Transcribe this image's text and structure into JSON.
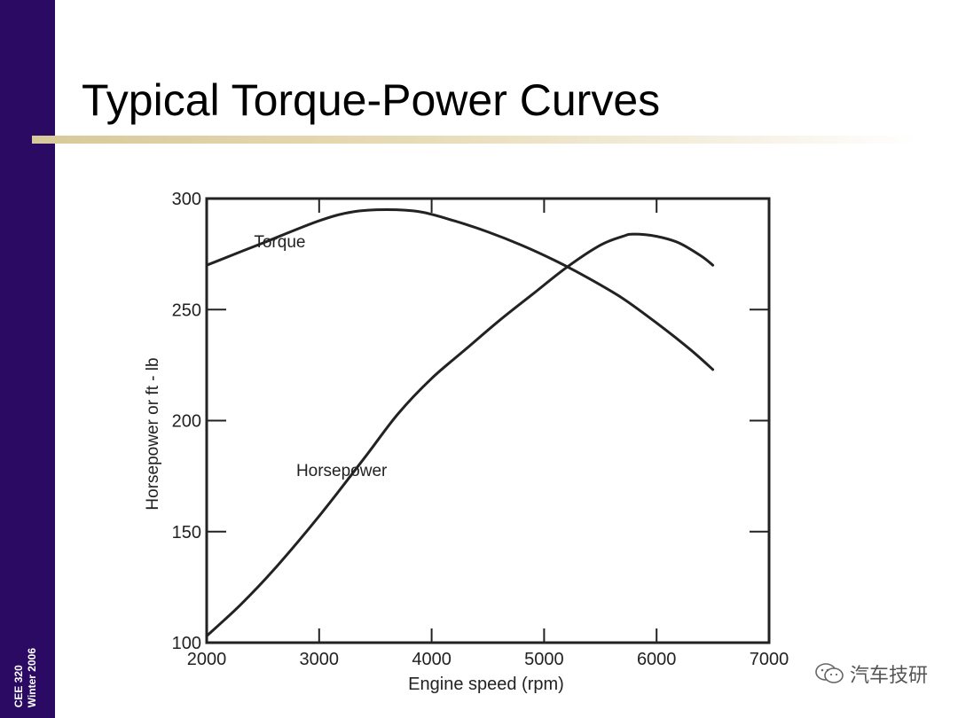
{
  "slide": {
    "title": "Typical Torque-Power Curves",
    "footer_lines": [
      "CEE 320",
      "Winter 2006"
    ],
    "watermark": "汽车技研",
    "colors": {
      "band": "#2a0a62",
      "rule": "#d8c99a",
      "ink": "#222222"
    }
  },
  "chart_data": {
    "type": "line",
    "title": "",
    "xlabel": "Engine speed (rpm)",
    "ylabel": "Horsepower or ft - lb",
    "xlim": [
      2000,
      7000
    ],
    "ylim": [
      100,
      300
    ],
    "xticks": [
      2000,
      3000,
      4000,
      5000,
      6000,
      7000
    ],
    "yticks": [
      100,
      150,
      200,
      250,
      300
    ],
    "xtick_labels": [
      "2000",
      "3000",
      "4000",
      "5000",
      "6000",
      "7000"
    ],
    "ytick_labels": [
      "100",
      "150",
      "200",
      "250",
      "300"
    ],
    "grid": false,
    "series": [
      {
        "name": "Torque",
        "label_at": [
          2650,
          278
        ],
        "x": [
          2000,
          2500,
          3000,
          3300,
          3600,
          3900,
          4200,
          4500,
          4800,
          5100,
          5400,
          5700,
          6000,
          6300,
          6500
        ],
        "y": [
          270,
          280,
          290,
          294,
          295,
          294,
          290,
          285,
          279,
          272,
          264,
          255,
          244,
          232,
          223
        ]
      },
      {
        "name": "Horsepower",
        "label_at": [
          3200,
          175
        ],
        "x": [
          2000,
          2300,
          2600,
          3000,
          3400,
          3700,
          4000,
          4300,
          4600,
          4900,
          5200,
          5500,
          5700,
          5800,
          6000,
          6200,
          6400,
          6500
        ],
        "y": [
          103,
          117,
          133,
          157,
          183,
          203,
          219,
          232,
          245,
          257,
          269,
          279,
          283,
          284,
          283,
          280,
          274,
          270
        ]
      }
    ]
  }
}
